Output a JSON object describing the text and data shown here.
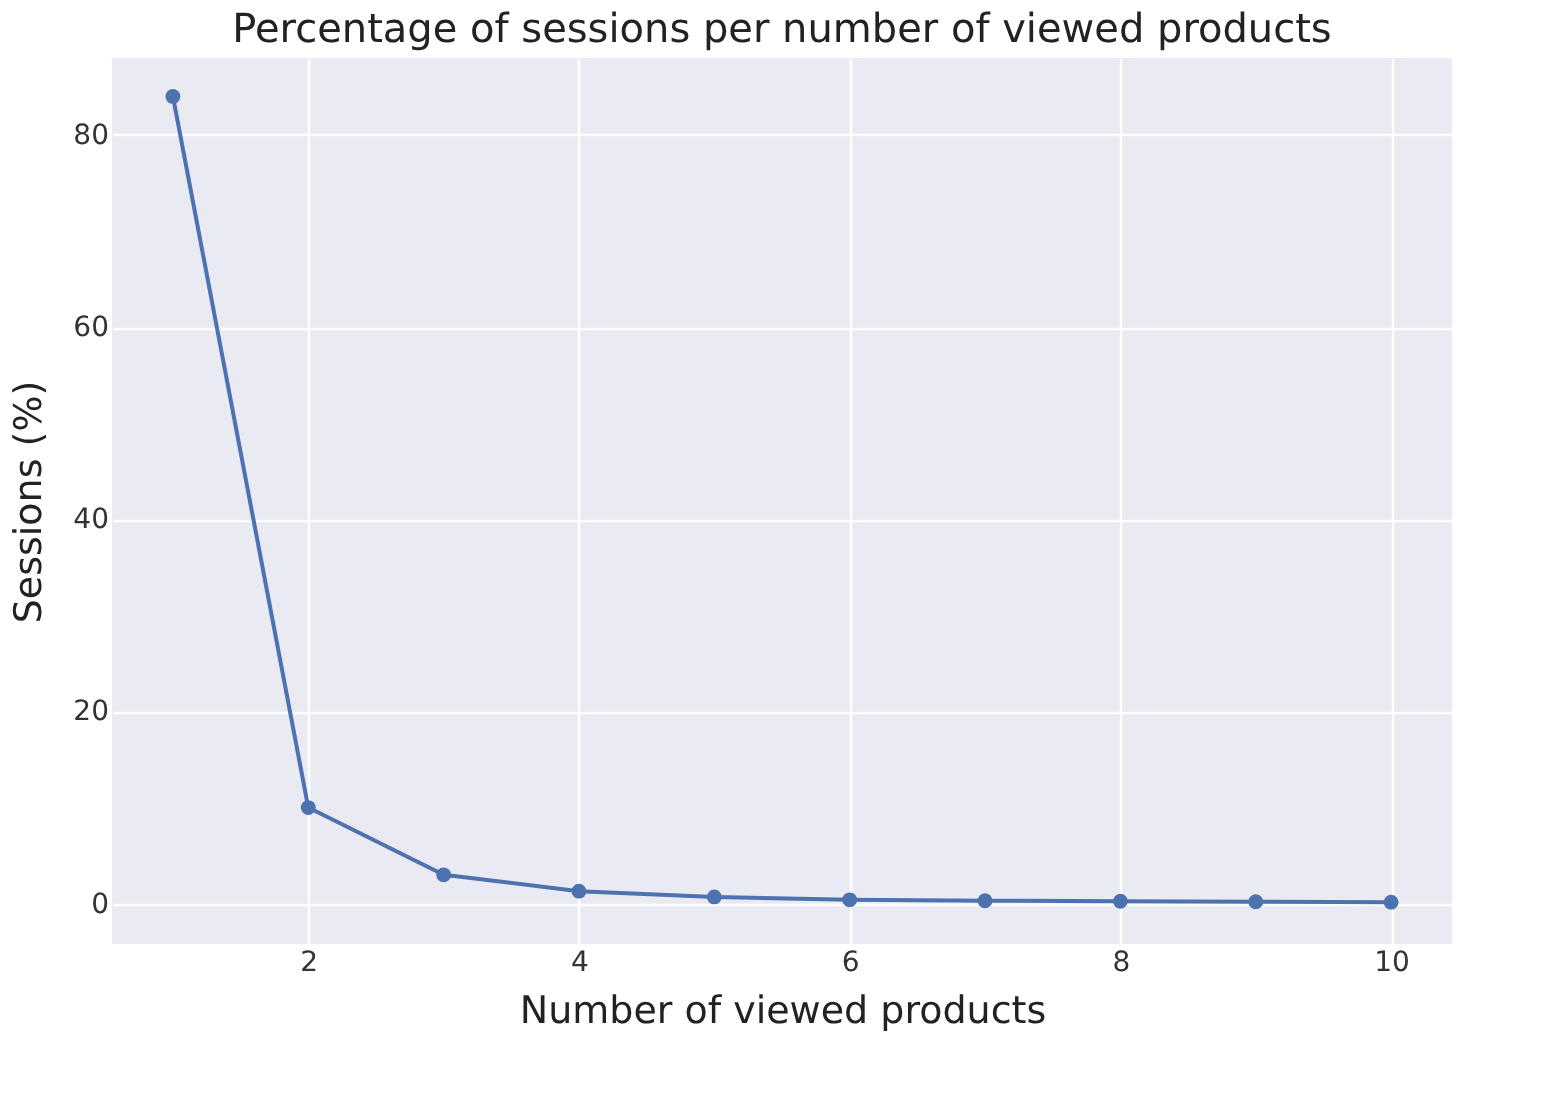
{
  "chart_data": {
    "type": "line",
    "title": "Percentage of sessions per number of viewed products",
    "xlabel": "Number of viewed products",
    "ylabel": "Sessions (%)",
    "x": [
      1,
      2,
      3,
      4,
      5,
      6,
      7,
      8,
      9,
      10
    ],
    "series": [
      {
        "color": "#4c72b0",
        "values": [
          84.0,
          10.0,
          3.0,
          1.3,
          0.7,
          0.4,
          0.3,
          0.25,
          0.2,
          0.15
        ]
      }
    ],
    "xlim": [
      0.55,
      10.45
    ],
    "xticks": [
      2,
      4,
      6,
      8,
      10
    ],
    "ylim": [
      -4.2,
      88
    ],
    "yticks": [
      0,
      20,
      40,
      60,
      80
    ],
    "grid": true,
    "marker": "circle",
    "line_style": "solid"
  }
}
